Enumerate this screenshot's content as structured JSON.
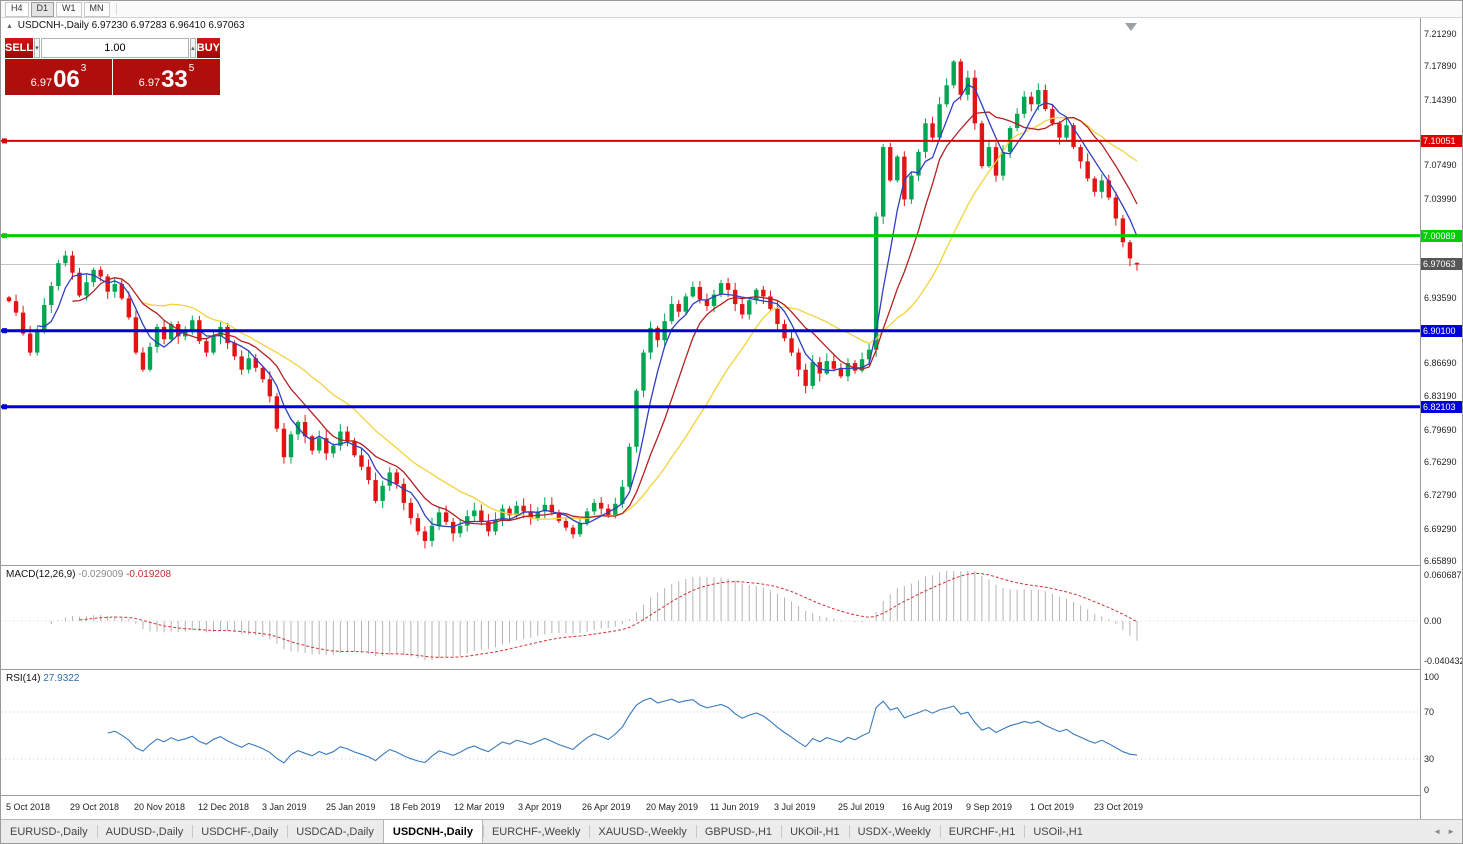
{
  "toolbar": {
    "timeframes": [
      "H4",
      "D1",
      "W1",
      "MN"
    ],
    "active": "D1"
  },
  "symbol": {
    "collapse_icon": "▲",
    "title": "USDCNH-,Daily",
    "ohlc": "6.97230 6.97283 6.96410 6.97063"
  },
  "trade_panel": {
    "sell_label": "SELL",
    "buy_label": "BUY",
    "volume": "1.00",
    "down_glyph": "▾",
    "up_glyph": "▴",
    "sell_price_small": "6.97",
    "sell_price_big": "06",
    "sell_price_sup": "3",
    "buy_price_small": "6.97",
    "buy_price_big": "33",
    "buy_price_sup": "5"
  },
  "chart_data": {
    "type": "candlestick",
    "symbol": "USDCNH-",
    "timeframe": "Daily",
    "title": "USDCNH-,Daily",
    "price_range": [
      6.6589,
      7.2129
    ],
    "y_ticks": [
      7.2129,
      7.1789,
      7.1439,
      7.0749,
      7.0399,
      6.9359,
      6.8669,
      6.8319,
      6.7969,
      6.7629,
      6.7279,
      6.6929,
      6.6589
    ],
    "x_labels": [
      "5 Oct 2018",
      "29 Oct 2018",
      "20 Nov 2018",
      "12 Dec 2018",
      "3 Jan 2019",
      "25 Jan 2019",
      "18 Feb 2019",
      "12 Mar 2019",
      "3 Apr 2019",
      "26 Apr 2019",
      "20 May 2019",
      "11 Jun 2019",
      "3 Jul 2019",
      "25 Jul 2019",
      "16 Aug 2019",
      "9 Sep 2019",
      "1 Oct 2019",
      "23 Oct 2019"
    ],
    "closes": [
      6.932,
      6.92,
      6.898,
      6.878,
      6.902,
      6.928,
      6.948,
      6.972,
      6.98,
      6.962,
      6.938,
      6.952,
      6.965,
      6.958,
      6.942,
      6.95,
      6.935,
      6.915,
      6.878,
      6.86,
      6.884,
      6.905,
      6.892,
      6.908,
      6.895,
      6.902,
      6.912,
      6.89,
      6.878,
      6.895,
      6.905,
      6.888,
      6.874,
      6.86,
      6.872,
      6.862,
      6.85,
      6.832,
      6.798,
      6.768,
      6.792,
      6.805,
      6.79,
      6.775,
      6.788,
      6.772,
      6.78,
      6.795,
      6.785,
      6.77,
      6.758,
      6.744,
      6.722,
      6.738,
      6.752,
      6.74,
      6.72,
      6.704,
      6.69,
      6.68,
      6.696,
      6.71,
      6.7,
      6.688,
      6.696,
      6.706,
      6.712,
      6.7,
      6.69,
      6.702,
      6.714,
      6.707,
      6.717,
      6.711,
      6.704,
      6.711,
      6.718,
      6.71,
      6.701,
      6.694,
      6.687,
      6.699,
      6.711,
      6.72,
      6.714,
      6.707,
      6.719,
      6.737,
      6.779,
      6.838,
      6.878,
      6.904,
      6.891,
      6.911,
      6.929,
      6.921,
      6.937,
      6.947,
      6.934,
      6.927,
      6.939,
      6.951,
      6.944,
      6.929,
      6.918,
      6.933,
      6.944,
      6.937,
      6.924,
      6.908,
      6.893,
      6.878,
      6.86,
      6.843,
      6.868,
      6.856,
      6.869,
      6.861,
      6.853,
      6.867,
      6.859,
      6.871,
      6.881,
      7.021,
      7.094,
      7.059,
      7.084,
      7.039,
      7.064,
      7.089,
      7.119,
      7.104,
      7.139,
      7.159,
      7.184,
      7.149,
      7.167,
      7.119,
      7.074,
      7.094,
      7.064,
      7.089,
      7.114,
      7.129,
      7.147,
      7.139,
      7.154,
      7.134,
      7.119,
      7.104,
      7.117,
      7.094,
      7.079,
      7.061,
      7.047,
      7.059,
      7.041,
      7.019,
      6.994,
      6.977,
      6.97063
    ],
    "last_candle": {
      "open": 6.9723,
      "high": 6.97283,
      "low": 6.9641,
      "close": 6.97063
    },
    "colors": {
      "up": "#00a651",
      "down": "#e21414",
      "bid_line": "#c4c4c4"
    },
    "levels": [
      {
        "price": 7.10051,
        "label": "7.10051",
        "color": "#e00000",
        "width": 2
      },
      {
        "price": 7.00089,
        "label": "7.00089",
        "color": "#00ce00",
        "width": 3
      },
      {
        "price": 6.901,
        "label": "6.90100",
        "color": "#0000dd",
        "width": 3
      },
      {
        "price": 6.82103,
        "label": "6.82103",
        "color": "#0000dd",
        "width": 3
      }
    ],
    "bid": {
      "price": 6.97063,
      "label": "6.97063",
      "box_color": "#565656"
    },
    "ma": [
      {
        "period": 5,
        "color": "#2f3fc0"
      },
      {
        "period": 10,
        "color": "#b22222"
      },
      {
        "period": 20,
        "color": "#f3d33c"
      }
    ],
    "macd": {
      "label": "MACD(12,26,9)",
      "value_main": "-0.029009",
      "value_signal": "-0.019208",
      "fast": 12,
      "slow": 26,
      "signal": 9,
      "scale_values": [
        0.060687,
        0,
        -0.040432
      ],
      "scale_labels": [
        "0.060687",
        "0.00",
        "-0.040432"
      ],
      "hist_color": "#b4b4b4",
      "signal_color": "#d23535"
    },
    "rsi": {
      "label": "RSI(14)",
      "value": "27.9322",
      "period": 14,
      "scale_values": [
        100,
        70,
        30,
        0
      ],
      "scale_labels": [
        "100",
        "70",
        "30",
        "0"
      ],
      "levels": [
        70,
        30
      ],
      "color": "#3a7abd"
    },
    "shift_marker_color": "#9aa0a6"
  },
  "tabs": {
    "items": [
      "EURUSD-,Daily",
      "AUDUSD-,Daily",
      "USDCHF-,Daily",
      "USDCAD-,Daily",
      "USDCNH-,Daily",
      "EURCHF-,Weekly",
      "XAUUSD-,Weekly",
      "GBPUSD-,H1",
      "UKOil-,H1",
      "USDX-,Weekly",
      "EURCHF-,H1",
      "USOil-,H1"
    ],
    "active_index": 4,
    "scroll_left_icon": "◄",
    "scroll_right_icon": "►"
  }
}
